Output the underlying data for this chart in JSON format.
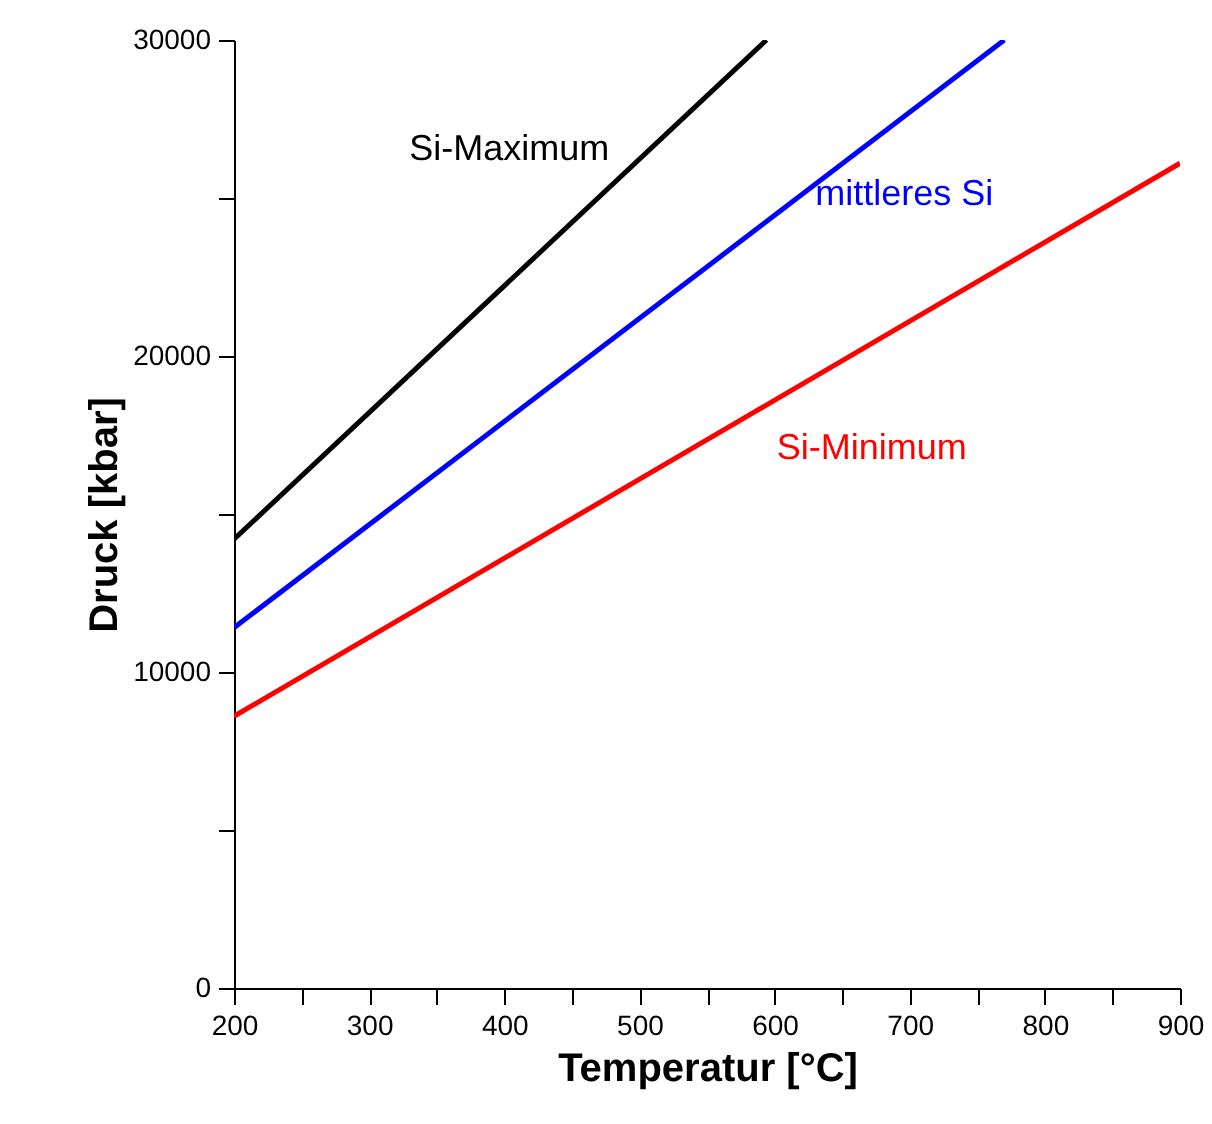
{
  "chart_data": {
    "type": "line",
    "xlabel": "Temperatur [°C]",
    "ylabel": "Druck [kbar]",
    "xlim": [
      200,
      900
    ],
    "ylim": [
      0,
      30000
    ],
    "xticks": [
      200,
      {
        "value": 250,
        "label": null
      },
      300,
      {
        "value": 350,
        "label": null
      },
      400,
      {
        "value": 450,
        "label": null
      },
      500,
      {
        "value": 550,
        "label": null
      },
      600,
      {
        "value": 650,
        "label": null
      },
      700,
      {
        "value": 750,
        "label": null
      },
      800,
      {
        "value": 850,
        "label": null
      },
      900
    ],
    "yticks": [
      0,
      {
        "value": 5000,
        "label": null
      },
      10000,
      {
        "value": 15000,
        "label": null
      },
      20000,
      {
        "value": 25000,
        "label": null
      },
      30000
    ],
    "grid": false,
    "line_style": "solid",
    "series": [
      {
        "name": "Si-Maximum",
        "color": "#000000",
        "x": [
          200,
          594
        ],
        "values": [
          14200,
          30000
        ]
      },
      {
        "name": "mittleres Si",
        "color": "#0000ff",
        "x": [
          200,
          770
        ],
        "values": [
          11400,
          30000
        ]
      },
      {
        "name": "Si-Minimum",
        "color": "#ff0000",
        "x": [
          200,
          900
        ],
        "values": [
          8600,
          26100
        ]
      }
    ]
  }
}
